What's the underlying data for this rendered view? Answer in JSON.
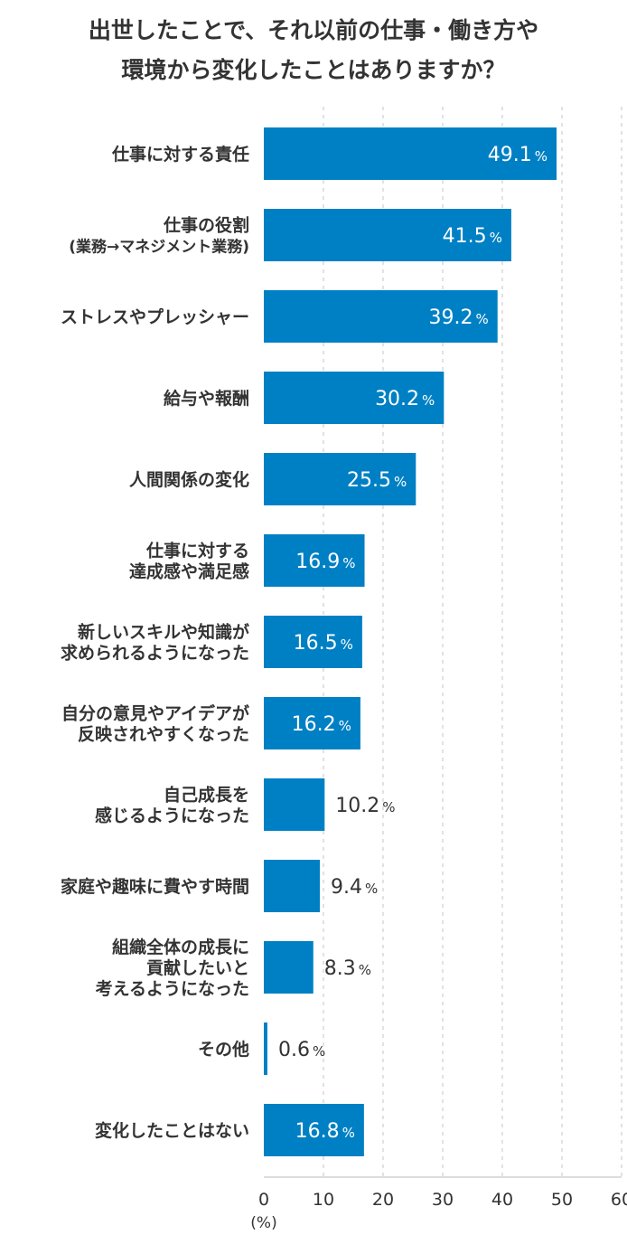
{
  "chart_data": {
    "type": "bar",
    "orientation": "horizontal",
    "title": [
      "出世したことで、それ以前の仕事・働き方や",
      "環境から変化したことはありますか？"
    ],
    "categories": [
      [
        "仕事に対する責任"
      ],
      [
        "仕事の役割",
        "(業務→マネジメント業務)"
      ],
      [
        "ストレスやプレッシャー"
      ],
      [
        "給与や報酬"
      ],
      [
        "人間関係の変化"
      ],
      [
        "仕事に対する",
        "達成感や満足感"
      ],
      [
        "新しいスキルや知識が",
        "求められるようになった"
      ],
      [
        "自分の意見やアイデアが",
        "反映されやすくなった"
      ],
      [
        "自己成長を",
        "感じるようになった"
      ],
      [
        "家庭や趣味に費やす時間"
      ],
      [
        "組織全体の成長に",
        "貢献したいと",
        "考えるようになった"
      ],
      [
        "その他"
      ],
      [
        "変化したことはない"
      ]
    ],
    "values": [
      49.1,
      41.5,
      39.2,
      30.2,
      25.5,
      16.9,
      16.5,
      16.2,
      10.2,
      9.4,
      8.3,
      0.6,
      16.8
    ],
    "value_labels": [
      "49.1",
      "41.5",
      "39.2",
      "30.2",
      "25.5",
      "16.9",
      "16.5",
      "16.2",
      "10.2",
      "9.4",
      "8.3",
      "0.6",
      "16.8"
    ],
    "value_unit": "%",
    "xlim": [
      0,
      60
    ],
    "xticks": [
      "0",
      "10",
      "20",
      "30",
      "40",
      "50",
      "60"
    ],
    "xlabel": "(%)",
    "grid": true,
    "colors": {
      "bar": "#0080c4",
      "text": "#333333",
      "grid": "#d9d9d9"
    }
  }
}
